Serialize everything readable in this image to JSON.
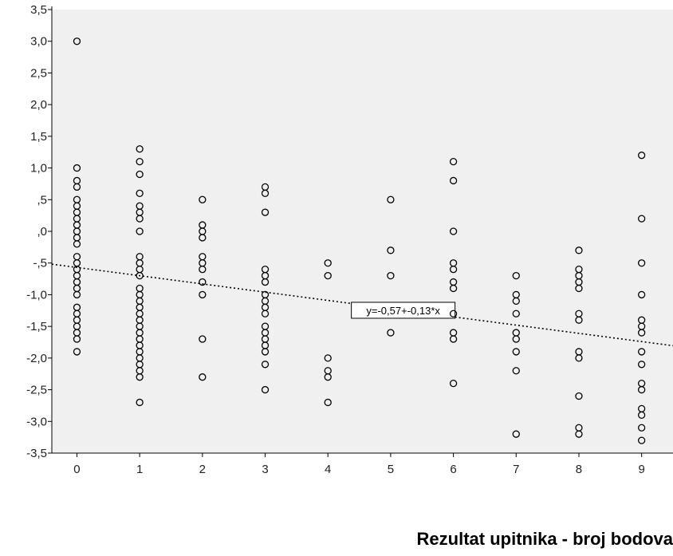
{
  "chart_data": {
    "type": "scatter",
    "title": "",
    "xlabel": "Rezultat upitnika - broj bodova",
    "ylabel": "",
    "xlim": [
      -0.4,
      9.5
    ],
    "ylim": [
      -3.5,
      3.5
    ],
    "grid": false,
    "plot_background": "#f0f0f0",
    "marker_color": "#000000",
    "x_ticks": [
      "0",
      "1",
      "2",
      "3",
      "4",
      "5",
      "6",
      "7",
      "8",
      "9"
    ],
    "y_ticks": [
      "3,5",
      "3,0",
      "2,5",
      "2,0",
      "1,5",
      "1,0",
      ",5",
      ",0",
      "-,5",
      "-1,0",
      "-1,5",
      "-2,0",
      "-2,5",
      "-3,0",
      "-3,5"
    ],
    "y_tick_values": [
      3.5,
      3.0,
      2.5,
      2.0,
      1.5,
      1.0,
      0.5,
      0.0,
      -0.5,
      -1.0,
      -1.5,
      -2.0,
      -2.5,
      -3.0,
      -3.5
    ],
    "fit_line": {
      "intercept": -0.57,
      "slope": -0.13,
      "label": "y=-0,57+-0,13*x",
      "label_x": 5.2
    },
    "points": [
      {
        "x": 0,
        "y": [
          3.0,
          1.0,
          0.8,
          0.7,
          0.5,
          0.4,
          0.3,
          0.2,
          0.1,
          0.0,
          -0.1,
          -0.2,
          -0.4,
          -0.5,
          -0.6,
          -0.7,
          -0.8,
          -0.9,
          -1.0,
          -1.2,
          -1.3,
          -1.4,
          -1.5,
          -1.6,
          -1.7,
          -1.9
        ]
      },
      {
        "x": 1,
        "y": [
          1.3,
          1.1,
          0.9,
          0.6,
          0.4,
          0.3,
          0.2,
          0.0,
          -0.4,
          -0.5,
          -0.6,
          -0.7,
          -0.9,
          -1.0,
          -1.1,
          -1.2,
          -1.3,
          -1.4,
          -1.5,
          -1.6,
          -1.7,
          -1.8,
          -1.9,
          -2.0,
          -2.1,
          -2.2,
          -2.3,
          -2.7
        ]
      },
      {
        "x": 2,
        "y": [
          0.5,
          0.1,
          0.0,
          -0.1,
          -0.4,
          -0.5,
          -0.6,
          -0.8,
          -1.0,
          -1.7,
          -2.3
        ]
      },
      {
        "x": 3,
        "y": [
          0.7,
          0.6,
          0.3,
          -0.6,
          -0.7,
          -0.8,
          -1.0,
          -1.1,
          -1.2,
          -1.3,
          -1.5,
          -1.6,
          -1.7,
          -1.8,
          -1.9,
          -2.1,
          -2.5
        ]
      },
      {
        "x": 4,
        "y": [
          -0.5,
          -0.7,
          -2.0,
          -2.2,
          -2.3,
          -2.7
        ]
      },
      {
        "x": 5,
        "y": [
          0.5,
          -0.3,
          -0.7,
          -1.6
        ]
      },
      {
        "x": 6,
        "y": [
          1.1,
          0.8,
          0.0,
          -0.5,
          -0.6,
          -0.8,
          -0.9,
          -1.3,
          -1.6,
          -1.7,
          -2.4
        ]
      },
      {
        "x": 7,
        "y": [
          -0.7,
          -1.0,
          -1.1,
          -1.3,
          -1.6,
          -1.7,
          -1.9,
          -2.2,
          -3.2
        ]
      },
      {
        "x": 8,
        "y": [
          -0.3,
          -0.6,
          -0.7,
          -0.8,
          -0.9,
          -1.3,
          -1.4,
          -1.9,
          -2.0,
          -2.6,
          -3.1,
          -3.2
        ]
      },
      {
        "x": 9,
        "y": [
          1.2,
          0.2,
          -0.5,
          -1.0,
          -1.4,
          -1.5,
          -1.6,
          -1.9,
          -2.1,
          -2.4,
          -2.5,
          -2.8,
          -2.9,
          -3.1,
          -3.3
        ]
      }
    ]
  }
}
